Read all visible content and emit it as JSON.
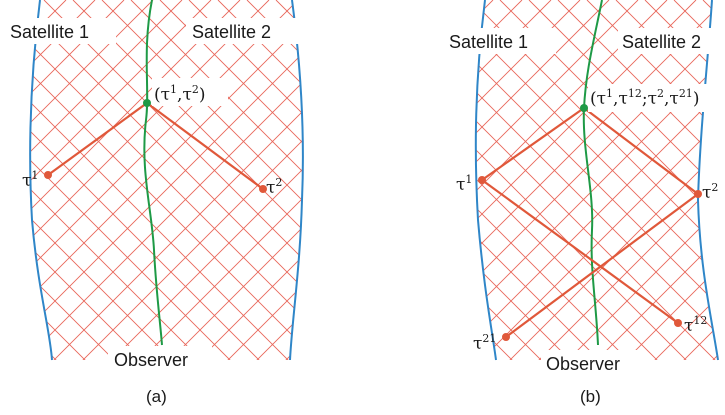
{
  "colors": {
    "grid": "#e8665a",
    "satellite": "#2f86c8",
    "observer": "#1e9a46",
    "signal": "#e0583a",
    "event_observer": "#1e9a46",
    "event_satellite": "#e0583a"
  },
  "panels": [
    {
      "id": "a",
      "caption": "(a)",
      "satellite1_label": "Satellite 1",
      "satellite2_label": "Satellite 2",
      "observer_label": "Observer",
      "point_left": {
        "base": "τ",
        "sup": "1"
      },
      "point_right": {
        "base": "τ",
        "sup": "2"
      },
      "event": {
        "open": "(",
        "t1": "τ",
        "s1": "1",
        "comma": ",",
        "t2": "τ",
        "s2": "2",
        "close": ")"
      }
    },
    {
      "id": "b",
      "caption": "(b)",
      "satellite1_label": "Satellite 1",
      "satellite2_label": "Satellite 2",
      "observer_label": "Observer",
      "point_left": {
        "base": "τ",
        "sup": "1"
      },
      "point_right": {
        "base": "τ",
        "sup": "2"
      },
      "point_bottom_left": {
        "base": "τ",
        "sup": "21"
      },
      "point_bottom_right": {
        "base": "τ",
        "sup": "12"
      },
      "event": {
        "open": "(",
        "t1": "τ",
        "s1": "1",
        "comma1": ",",
        "t12": "τ",
        "s12": "12",
        "semi": ";",
        "t2": "τ",
        "s2": "2",
        "comma2": ",",
        "t21": "τ",
        "s21": "21",
        "close": ")"
      }
    }
  ]
}
